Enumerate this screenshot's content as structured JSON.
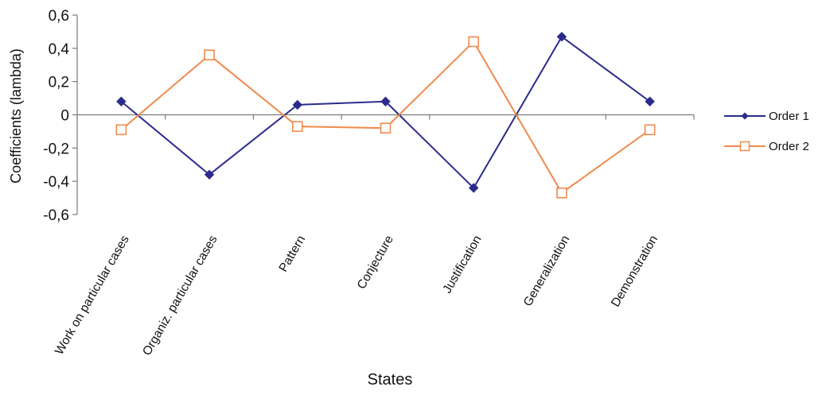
{
  "chart_data": {
    "type": "line",
    "title": "",
    "xlabel": "States",
    "ylabel": "Coefficients (lambda)",
    "ylim": [
      -0.6,
      0.6
    ],
    "yticks": [
      0.6,
      0.4,
      0.2,
      0,
      -0.2,
      -0.4,
      -0.6
    ],
    "ytick_labels": [
      "0,6",
      "0,4",
      "0,2",
      "0",
      "-0,2",
      "-0,4",
      "-0,6"
    ],
    "categories": [
      "Work on particular cases",
      "Organiz. particular cases",
      "Pattern",
      "Conjecture",
      "Justification",
      "Generalization",
      "Demonstration"
    ],
    "grid": false,
    "legend_position": "right",
    "series": [
      {
        "name": "Order 1",
        "values": [
          0.08,
          -0.36,
          0.06,
          0.08,
          -0.44,
          0.47,
          0.08
        ],
        "color": "#2b2b8c",
        "marker": "diamond"
      },
      {
        "name": "Order 2",
        "values": [
          -0.09,
          0.36,
          -0.07,
          -0.08,
          0.44,
          -0.47,
          -0.09
        ],
        "color": "#f08a4b",
        "marker": "hollow-square"
      }
    ]
  }
}
